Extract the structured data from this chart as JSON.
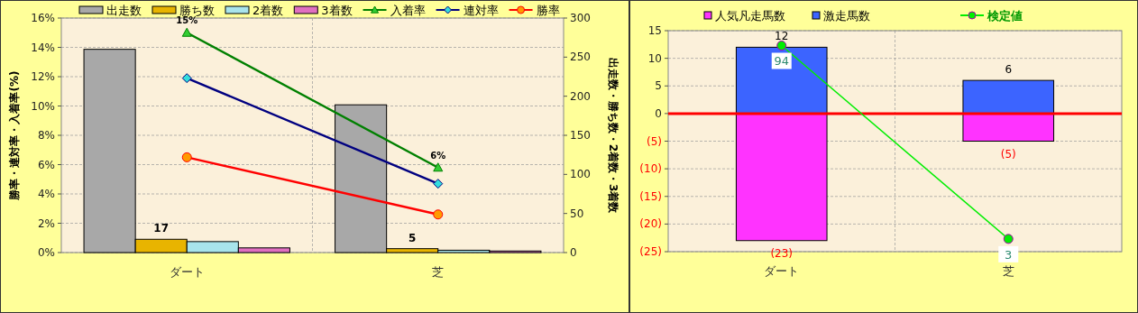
{
  "chart_data": [
    {
      "type": "bar",
      "categories": [
        "ダート",
        "芝"
      ],
      "ylabel": "勝率・連対率・入着率(%)",
      "y2label": "出走数・勝ち数・2着数・3着数",
      "ylim": [
        0,
        16
      ],
      "yticks": [
        {
          "value": 0,
          "label": "0%"
        },
        {
          "value": 2,
          "label": "2%"
        },
        {
          "value": 4,
          "label": "4%"
        },
        {
          "value": 6,
          "label": "6%"
        },
        {
          "value": 8,
          "label": "8%"
        },
        {
          "value": 10,
          "label": "10%"
        },
        {
          "value": 12,
          "label": "12%"
        },
        {
          "value": 14,
          "label": "14%"
        },
        {
          "value": 16,
          "label": "16%"
        }
      ],
      "y2lim": [
        0,
        300
      ],
      "y2ticks": [
        0,
        50,
        100,
        150,
        200,
        250,
        300
      ],
      "grid": true,
      "legend": "top",
      "series": [
        {
          "name": "出走数",
          "type": "bar",
          "axis": "y2",
          "color": "#a8a8a8",
          "values": [
            260,
            189
          ]
        },
        {
          "name": "勝ち数",
          "type": "bar",
          "axis": "y2",
          "color": "#e8b400",
          "values": [
            17,
            5
          ],
          "value_labels": [
            "17",
            "5"
          ]
        },
        {
          "name": "2着数",
          "type": "bar",
          "axis": "y2",
          "color": "#a8e4ec",
          "values": [
            14,
            3
          ]
        },
        {
          "name": "3着数",
          "type": "bar",
          "axis": "y2",
          "color": "#e070c0",
          "values": [
            6,
            2
          ]
        },
        {
          "name": "入着率",
          "type": "line",
          "color": "#008000",
          "marker": "triangle",
          "values": [
            15,
            5.8
          ],
          "value_labels": [
            "15%",
            "6%"
          ]
        },
        {
          "name": "連対率",
          "type": "line",
          "color": "#000080",
          "marker": "diamond",
          "values": [
            11.9,
            4.7
          ]
        },
        {
          "name": "勝率",
          "type": "line",
          "color": "#ff0000",
          "marker": "circle",
          "values": [
            6.5,
            2.6
          ]
        }
      ]
    },
    {
      "type": "bar",
      "stacked": true,
      "categories": [
        "ダート",
        "芝"
      ],
      "ylim": [
        -25,
        15
      ],
      "yticks": [
        {
          "value": -25,
          "label": "(25)"
        },
        {
          "value": -20,
          "label": "(20)"
        },
        {
          "value": -15,
          "label": "(15)"
        },
        {
          "value": -10,
          "label": "(10)"
        },
        {
          "value": -5,
          "label": "(5)"
        },
        0,
        5,
        10,
        15
      ],
      "y2lim": [
        -3,
        101
      ],
      "grid": true,
      "legend": "top",
      "ref_lines": [
        {
          "axis": "y",
          "value": 0,
          "color": "#ff0000"
        }
      ],
      "series": [
        {
          "name": "人気凡走馬数",
          "type": "bar",
          "color": "#ff33ff",
          "values": [
            -23,
            -5
          ],
          "value_labels": [
            "(23)",
            "(5)"
          ]
        },
        {
          "name": "激走馬数",
          "type": "bar",
          "color": "#3c64ff",
          "values": [
            12,
            6
          ],
          "value_labels": [
            "12",
            "6"
          ]
        },
        {
          "name": "検定値",
          "type": "line",
          "axis": "y2",
          "color": "#00ee00",
          "marker": "circle",
          "values": [
            94,
            3
          ],
          "value_labels": [
            "94",
            "3"
          ]
        }
      ]
    }
  ]
}
